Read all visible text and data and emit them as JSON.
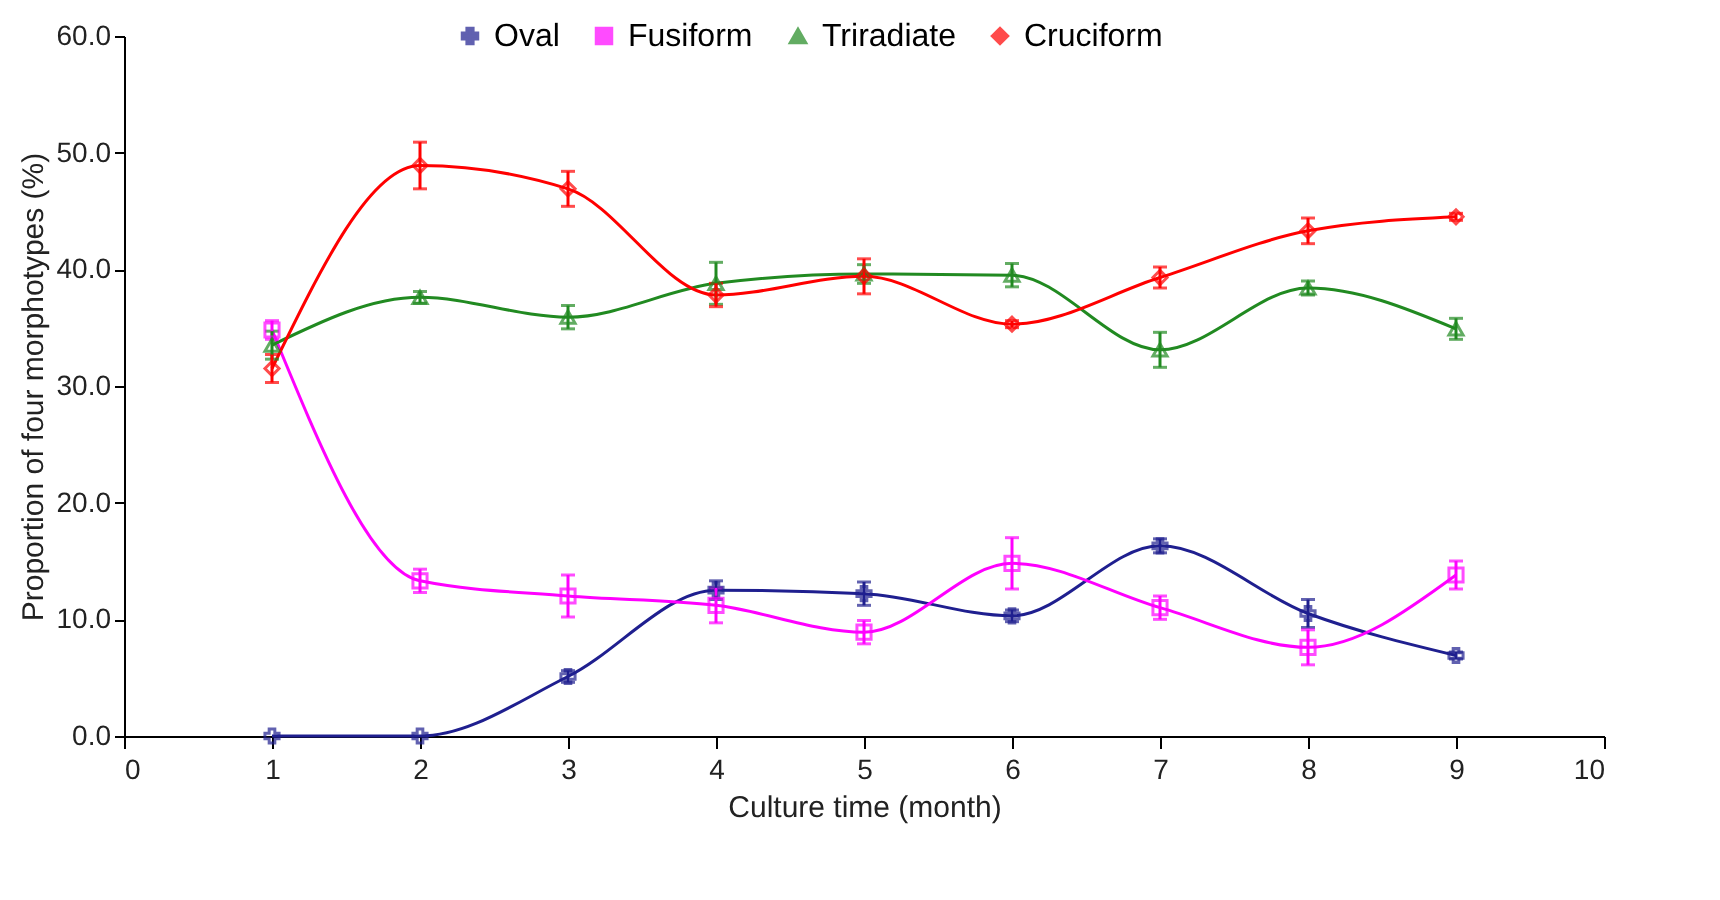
{
  "chart_data": {
    "type": "line",
    "xlabel": "Culture time (month)",
    "ylabel": "Proportion of four morphotypes (%)",
    "x": [
      1,
      2,
      3,
      4,
      5,
      6,
      7,
      8,
      9
    ],
    "series": [
      {
        "name": "Oval",
        "color": "#1f1f8f",
        "marker": "cross",
        "values": [
          0,
          0,
          5.1,
          12.5,
          12.2,
          10.3,
          16.3,
          10.5,
          6.9
        ],
        "errors": [
          null,
          null,
          0.5,
          0.8,
          1.0,
          0.5,
          0.6,
          1.2,
          0.3
        ]
      },
      {
        "name": "Fusiform",
        "color": "#ff00ff",
        "marker": "square",
        "values": [
          34.8,
          13.3,
          12.0,
          11.2,
          8.9,
          14.8,
          11.0,
          7.6,
          13.8
        ],
        "errors": [
          0.8,
          1.0,
          1.8,
          1.5,
          1.0,
          2.2,
          1.0,
          1.5,
          1.2
        ]
      },
      {
        "name": "Triradiate",
        "color": "#218a21",
        "marker": "triangle",
        "values": [
          33.5,
          37.6,
          35.9,
          38.8,
          39.6,
          39.5,
          33.1,
          38.4,
          34.9
        ],
        "errors": [
          1.2,
          0.5,
          1.0,
          1.8,
          0.8,
          1.0,
          1.5,
          0.6,
          0.9
        ]
      },
      {
        "name": "Cruciform",
        "color": "#ff0000",
        "marker": "diamond",
        "values": [
          31.5,
          48.9,
          46.9,
          37.8,
          39.4,
          35.3,
          39.3,
          43.3,
          44.5
        ],
        "errors": [
          1.2,
          2.0,
          1.5,
          1.0,
          1.5,
          0.3,
          0.9,
          1.1,
          0.3
        ]
      }
    ],
    "xlim": [
      0,
      10
    ],
    "xticks": [
      0,
      1,
      2,
      3,
      4,
      5,
      6,
      7,
      8,
      9,
      10
    ],
    "ylim": [
      0,
      60
    ],
    "yticks": [
      {
        "value": 0,
        "label": "0.0"
      },
      {
        "value": 10,
        "label": "10.0"
      },
      {
        "value": 20,
        "label": "20.0"
      },
      {
        "value": 30,
        "label": "30.0"
      },
      {
        "value": 40,
        "label": "40.0"
      },
      {
        "value": 50,
        "label": "50.0"
      },
      {
        "value": 60,
        "label": "60.0"
      }
    ],
    "grid": false,
    "legend": "top",
    "line_style": "solid"
  }
}
